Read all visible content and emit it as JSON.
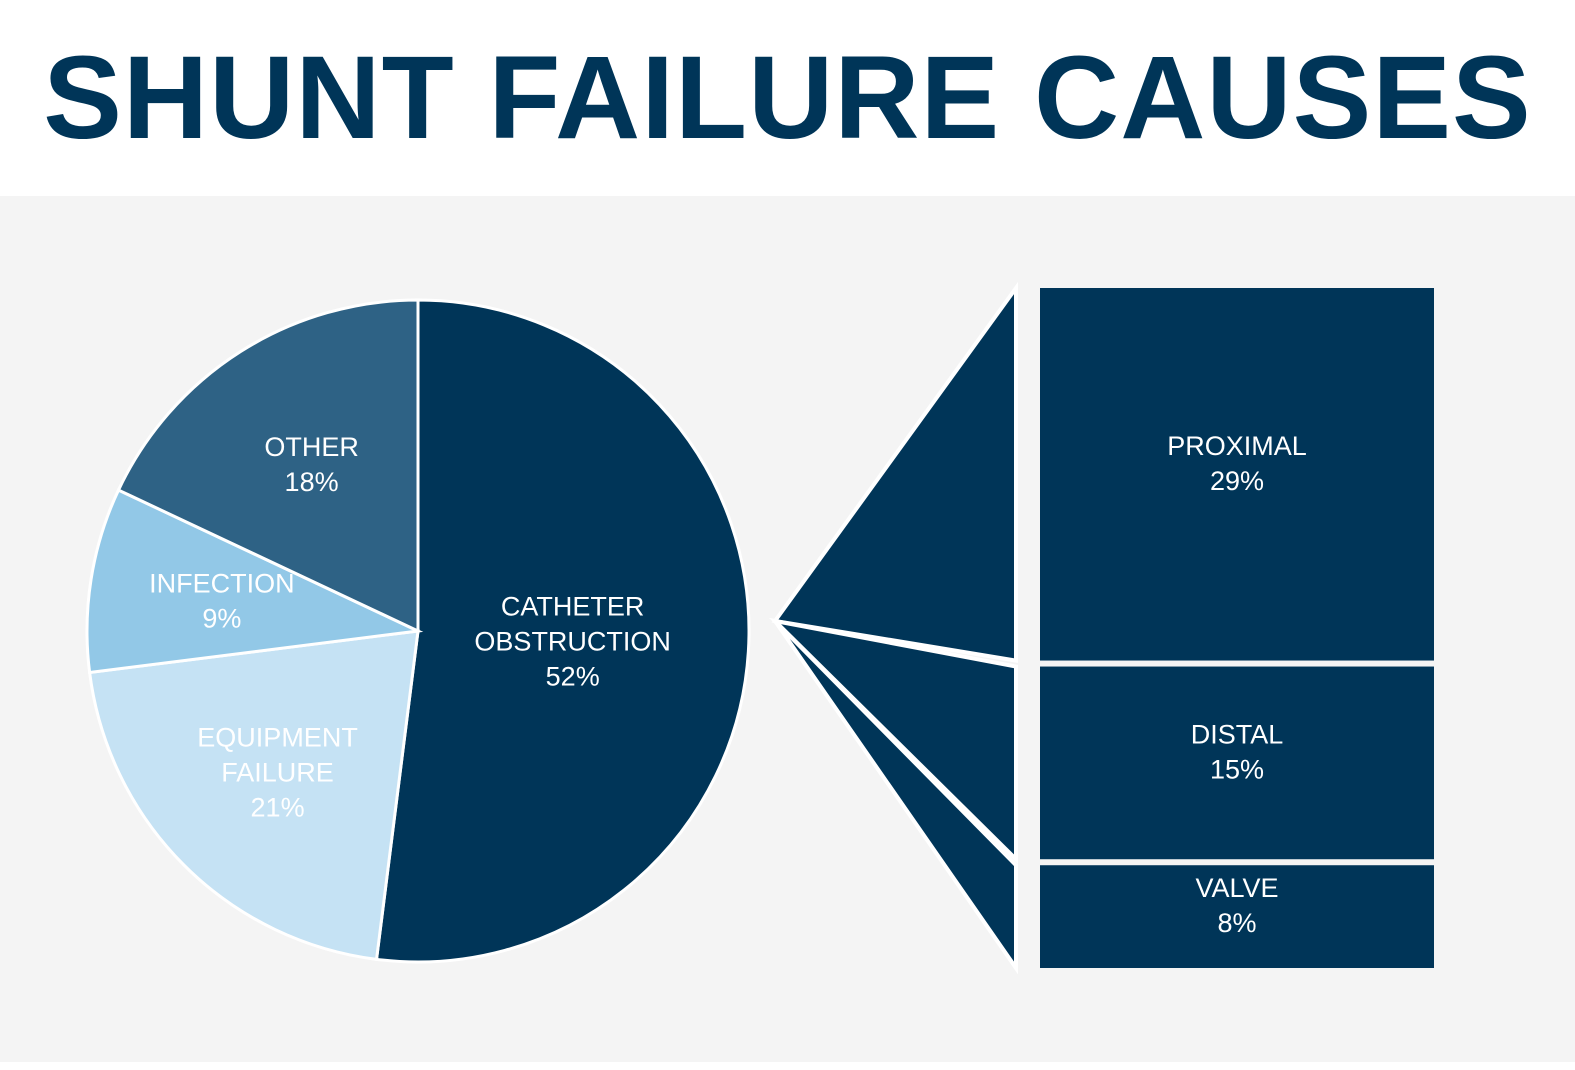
{
  "title": "SHUNT FAILURE CAUSES",
  "colors": {
    "title": "#003558",
    "background": "#f4f4f4",
    "catheter_obstruction": "#003558",
    "other": "#2e6285",
    "infection": "#92c8e7",
    "equipment_failure": "#c5e2f4",
    "breakdown": "#003558",
    "label": "#ffffff"
  },
  "chart_data": [
    {
      "type": "pie",
      "slices": [
        {
          "label_lines": [
            "CATHETER",
            "OBSTRUCTION"
          ],
          "value_label": "52%",
          "value": 52,
          "color_key": "catheter_obstruction"
        },
        {
          "label_lines": [
            "EQUIPMENT",
            "FAILURE"
          ],
          "value_label": "21%",
          "value": 21,
          "color_key": "equipment_failure"
        },
        {
          "label_lines": [
            "INFECTION"
          ],
          "value_label": "9%",
          "value": 9,
          "color_key": "infection"
        },
        {
          "label_lines": [
            "OTHER"
          ],
          "value_label": "18%",
          "value": 18,
          "color_key": "other"
        }
      ]
    },
    {
      "type": "bar",
      "stacked": true,
      "breakdown_of": "CATHETER OBSTRUCTION",
      "segments": [
        {
          "label": "PROXIMAL",
          "value_label": "29%",
          "value": 29
        },
        {
          "label": "DISTAL",
          "value_label": "15%",
          "value": 15
        },
        {
          "label": "VALVE",
          "value_label": "8%",
          "value": 8
        }
      ]
    }
  ]
}
